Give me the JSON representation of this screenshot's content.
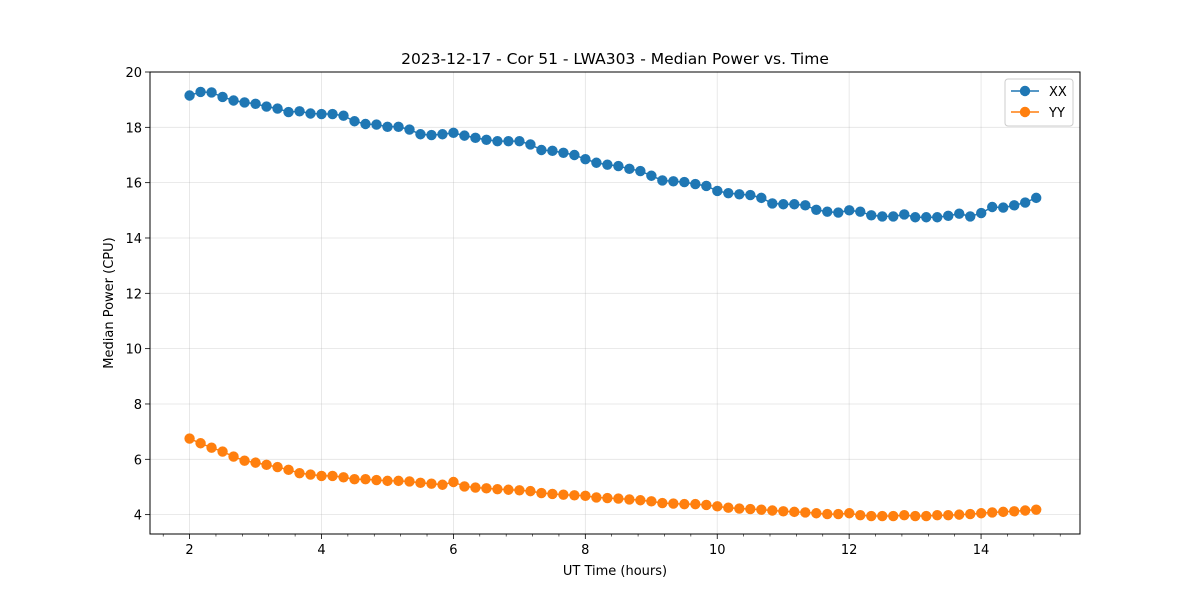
{
  "chart_data": {
    "type": "line",
    "title": "2023-12-17 - Cor 51 - LWA303 - Median Power vs. Time",
    "xlabel": "UT Time (hours)",
    "ylabel": "Median Power (CPU)",
    "xlim": [
      1.4,
      15.5
    ],
    "ylim": [
      3.3,
      20
    ],
    "xticks": [
      2,
      4,
      6,
      8,
      10,
      12,
      14
    ],
    "yticks": [
      4,
      6,
      8,
      10,
      12,
      14,
      16,
      18,
      20
    ],
    "xminor_step": 0.4,
    "grid": true,
    "legend_position": "top-right",
    "x_start": 2.0,
    "x_step": 0.1667,
    "series": [
      {
        "name": "XX",
        "color": "#1f77b4",
        "values": [
          19.15,
          19.28,
          19.26,
          19.1,
          18.97,
          18.9,
          18.85,
          18.75,
          18.68,
          18.55,
          18.58,
          18.5,
          18.48,
          18.48,
          18.42,
          18.22,
          18.12,
          18.1,
          18.02,
          18.02,
          17.92,
          17.75,
          17.72,
          17.75,
          17.8,
          17.7,
          17.62,
          17.55,
          17.5,
          17.5,
          17.5,
          17.38,
          17.18,
          17.15,
          17.08,
          17.0,
          16.85,
          16.72,
          16.65,
          16.6,
          16.5,
          16.42,
          16.25,
          16.08,
          16.05,
          16.02,
          15.95,
          15.88,
          15.7,
          15.62,
          15.58,
          15.55,
          15.45,
          15.25,
          15.22,
          15.22,
          15.18,
          15.02,
          14.95,
          14.92,
          15.0,
          14.95,
          14.82,
          14.78,
          14.78,
          14.85,
          14.75,
          14.75,
          14.75,
          14.8,
          14.88,
          14.78,
          14.9,
          15.12,
          15.1,
          15.18,
          15.28,
          15.45
        ]
      },
      {
        "name": "YY",
        "color": "#ff7f0e",
        "values": [
          6.75,
          6.58,
          6.42,
          6.28,
          6.1,
          5.95,
          5.88,
          5.8,
          5.72,
          5.62,
          5.5,
          5.45,
          5.4,
          5.4,
          5.35,
          5.28,
          5.28,
          5.25,
          5.22,
          5.22,
          5.2,
          5.15,
          5.12,
          5.08,
          5.18,
          5.02,
          4.98,
          4.95,
          4.92,
          4.9,
          4.88,
          4.85,
          4.78,
          4.75,
          4.72,
          4.7,
          4.68,
          4.62,
          4.6,
          4.58,
          4.55,
          4.52,
          4.48,
          4.42,
          4.4,
          4.38,
          4.38,
          4.35,
          4.3,
          4.25,
          4.22,
          4.2,
          4.18,
          4.15,
          4.12,
          4.1,
          4.08,
          4.05,
          4.02,
          4.02,
          4.05,
          3.98,
          3.95,
          3.95,
          3.95,
          3.98,
          3.95,
          3.95,
          3.98,
          3.98,
          4.0,
          4.02,
          4.05,
          4.08,
          4.1,
          4.12,
          4.15,
          4.18
        ]
      }
    ]
  }
}
